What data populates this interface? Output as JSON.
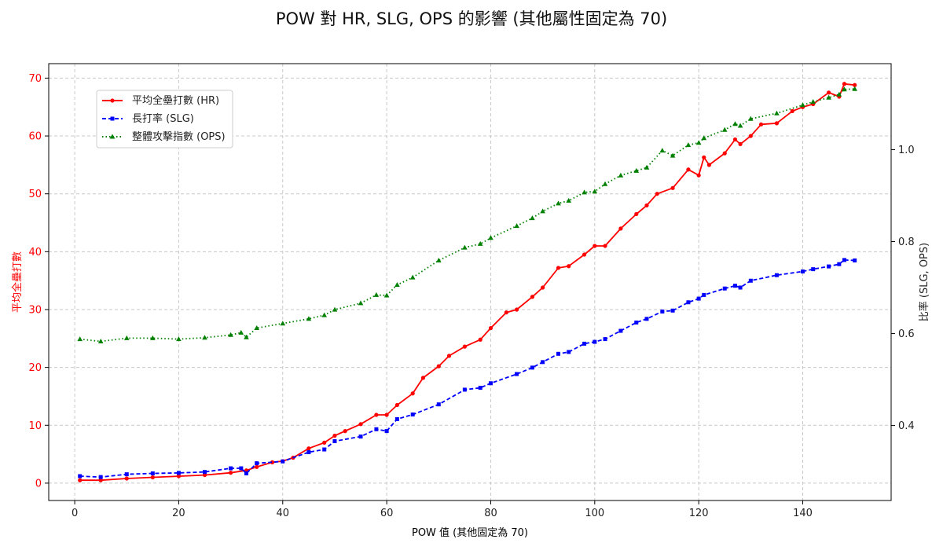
{
  "chart_data": {
    "type": "line",
    "title": "POW 對 HR, SLG, OPS 的影響 (其他屬性固定為 70)",
    "xlabel": "POW 值 (其他固定為 70)",
    "ylabel_left": "平均全壘打數",
    "ylabel_right": "比率 (SLG, OPS)",
    "xlim": [
      -5,
      157
    ],
    "ylim_left": [
      -3,
      72.5
    ],
    "ylim_right": [
      0.237,
      1.187
    ],
    "x_ticks": [
      0,
      20,
      40,
      60,
      80,
      100,
      120,
      140
    ],
    "y_ticks_left": [
      0,
      10,
      20,
      30,
      40,
      50,
      60,
      70
    ],
    "y_ticks_right": [
      "0.4",
      "0.6",
      "0.8",
      "1.0"
    ],
    "grid": true,
    "legend_position": "upper-left",
    "colors": {
      "hr": "#ff0000",
      "slg": "#0000ff",
      "ops": "#008000",
      "left_axis": "#ff0000"
    },
    "series": [
      {
        "name": "平均全壘打數 (HR)",
        "axis": "left",
        "x": [
          1,
          5,
          10,
          15,
          20,
          25,
          30,
          33,
          35,
          38,
          40,
          42,
          45,
          48,
          50,
          52,
          55,
          58,
          60,
          62,
          65,
          67,
          70,
          72,
          75,
          78,
          80,
          83,
          85,
          88,
          90,
          93,
          95,
          98,
          100,
          102,
          105,
          108,
          110,
          112,
          115,
          118,
          120,
          121,
          122,
          125,
          127,
          128,
          130,
          132,
          135,
          138,
          140,
          142,
          145,
          147,
          148,
          150
        ],
        "y": [
          0.5,
          0.5,
          0.8,
          1.0,
          1.2,
          1.4,
          1.8,
          2.2,
          2.8,
          3.6,
          3.8,
          4.4,
          6.0,
          7.0,
          8.2,
          9.0,
          10.2,
          11.8,
          11.8,
          13.5,
          15.5,
          18.2,
          20.2,
          22.0,
          23.6,
          24.8,
          26.8,
          29.5,
          30.0,
          32.2,
          33.8,
          37.2,
          37.5,
          39.5,
          41.0,
          41.0,
          44.0,
          46.5,
          48.0,
          50.0,
          51.0,
          54.2,
          53.2,
          56.3,
          55.0,
          57.0,
          59.4,
          58.6,
          60.0,
          62.0,
          62.2,
          64.3,
          65.0,
          65.5,
          67.5,
          66.8,
          69.0,
          68.8
        ]
      },
      {
        "name": "長打率 (SLG)",
        "axis": "right",
        "x": [
          1,
          5,
          10,
          15,
          20,
          25,
          30,
          32,
          33,
          35,
          40,
          45,
          48,
          50,
          55,
          58,
          60,
          62,
          65,
          70,
          75,
          78,
          80,
          85,
          88,
          90,
          93,
          95,
          98,
          100,
          102,
          105,
          108,
          110,
          113,
          115,
          118,
          120,
          121,
          125,
          127,
          128,
          130,
          135,
          140,
          142,
          145,
          147,
          148,
          150
        ],
        "y": [
          0.29,
          0.288,
          0.294,
          0.296,
          0.297,
          0.299,
          0.307,
          0.307,
          0.296,
          0.318,
          0.322,
          0.342,
          0.348,
          0.366,
          0.376,
          0.392,
          0.388,
          0.414,
          0.424,
          0.446,
          0.478,
          0.482,
          0.492,
          0.512,
          0.526,
          0.538,
          0.556,
          0.56,
          0.578,
          0.582,
          0.588,
          0.606,
          0.624,
          0.632,
          0.648,
          0.65,
          0.668,
          0.676,
          0.684,
          0.698,
          0.704,
          0.7,
          0.715,
          0.727,
          0.735,
          0.74,
          0.746,
          0.751,
          0.76,
          0.759
        ]
      },
      {
        "name": "整體攻擊指數 (OPS)",
        "axis": "right",
        "x": [
          1,
          5,
          10,
          15,
          20,
          25,
          30,
          32,
          33,
          35,
          40,
          45,
          48,
          50,
          55,
          58,
          60,
          62,
          65,
          70,
          75,
          78,
          80,
          85,
          88,
          90,
          93,
          95,
          98,
          100,
          102,
          105,
          108,
          110,
          113,
          115,
          118,
          120,
          121,
          125,
          127,
          128,
          130,
          135,
          140,
          142,
          145,
          147,
          148,
          150
        ],
        "y": [
          0.588,
          0.583,
          0.59,
          0.59,
          0.588,
          0.591,
          0.597,
          0.602,
          0.592,
          0.612,
          0.622,
          0.632,
          0.64,
          0.652,
          0.666,
          0.684,
          0.683,
          0.706,
          0.722,
          0.759,
          0.787,
          0.795,
          0.808,
          0.834,
          0.851,
          0.866,
          0.883,
          0.889,
          0.907,
          0.909,
          0.925,
          0.944,
          0.954,
          0.961,
          0.998,
          0.987,
          1.01,
          1.015,
          1.025,
          1.043,
          1.056,
          1.052,
          1.067,
          1.079,
          1.097,
          1.104,
          1.113,
          1.12,
          1.131,
          1.132
        ]
      }
    ]
  }
}
